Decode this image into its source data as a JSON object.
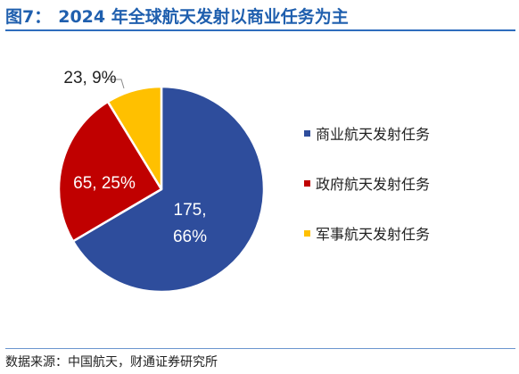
{
  "header": {
    "fig_label": "图7：",
    "title": "2024 年全球航天发射以商业任务为主"
  },
  "footer": {
    "source": "数据来源：中国航天，财通证券研究所"
  },
  "chart_data": {
    "type": "pie",
    "title": "2024 年全球航天发射以商业任务为主",
    "categories": [
      "商业航天发射任务",
      "政府航天发射任务",
      "军事航天发射任务"
    ],
    "values": [
      175,
      65,
      23
    ],
    "percents": [
      66,
      25,
      9
    ],
    "labels": [
      "175, 66%",
      "65, 25%",
      "23, 9%"
    ],
    "colors": [
      "#2e4d9c",
      "#c00000",
      "#ffc000"
    ],
    "start": "12 o'clock, clockwise",
    "legend_placement": "right"
  }
}
